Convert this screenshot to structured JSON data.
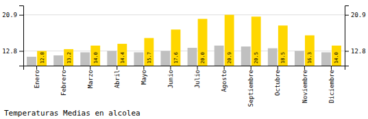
{
  "chart_data": {
    "type": "bar",
    "title": "Temperaturas Medias en alcolea",
    "categories": [
      "Enero",
      "Febrero",
      "Marzo",
      "Abril",
      "Mayo",
      "Junio",
      "Julio",
      "Agosto",
      "Septiembre",
      "Octubre",
      "Noviembre",
      "Diciembre"
    ],
    "series": [
      {
        "color": "#C0C0C0",
        "values": [
          11.5,
          11.8,
          12.5,
          12.8,
          12.5,
          12.8,
          13.5,
          14.0,
          13.8,
          13.4,
          12.8,
          12.5
        ]
      },
      {
        "color": "#FFD700",
        "values": [
          12.8,
          13.2,
          14.0,
          14.4,
          15.7,
          17.6,
          20.0,
          20.9,
          20.5,
          18.5,
          16.3,
          14.0
        ],
        "value_labels": [
          "12.8",
          "13.2",
          "14.0",
          "14.4",
          "15.7",
          "17.6",
          "20.0",
          "20.9",
          "20.5",
          "18.5",
          "16.3",
          "14.0"
        ],
        "data_labels": true
      }
    ],
    "ylim": [
      9.5,
      23.0
    ],
    "yticks": [
      12.8,
      20.9
    ],
    "y2lim": [
      9.5,
      23.0
    ],
    "y2ticks": [
      12.8,
      20.9
    ],
    "grid": true
  }
}
